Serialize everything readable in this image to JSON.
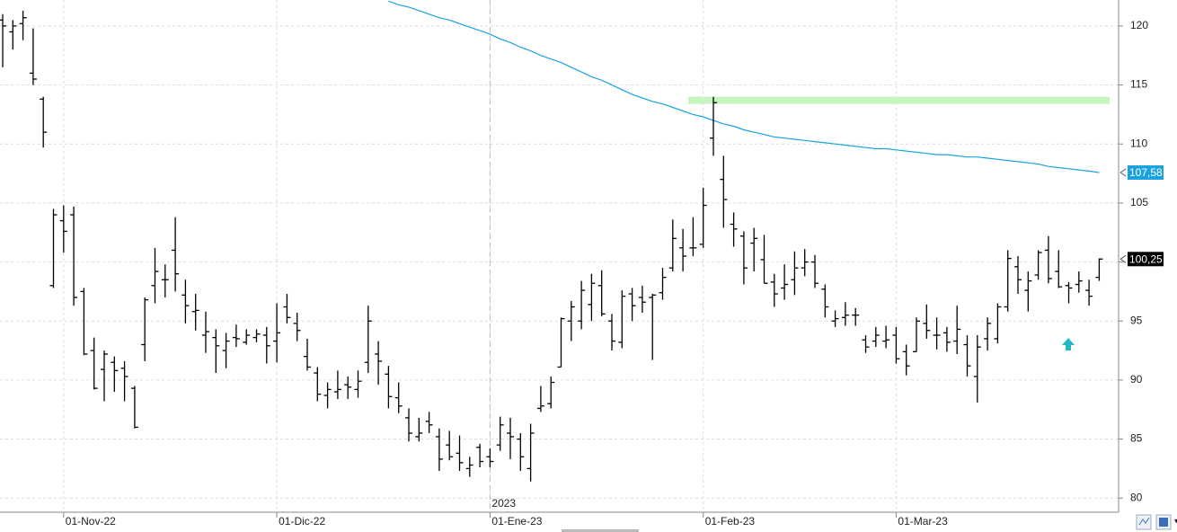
{
  "chart_data": {
    "type": "ohlc",
    "categories": [
      null,
      null,
      null,
      null,
      null,
      null,
      "01-Nov-22",
      null,
      null,
      null,
      null,
      null,
      null,
      null,
      null,
      null,
      null,
      null,
      null,
      null,
      null,
      null,
      null,
      null,
      null,
      null,
      null,
      "01-Dic-22",
      null,
      null,
      null,
      null,
      null,
      null,
      null,
      null,
      null,
      null,
      null,
      null,
      null,
      null,
      null,
      null,
      null,
      null,
      null,
      null,
      "01-Ene-23",
      null,
      null,
      null,
      null,
      null,
      null,
      null,
      null,
      null,
      null,
      null,
      null,
      null,
      null,
      null,
      null,
      null,
      null,
      null,
      null,
      "01-Feb-23",
      null,
      null,
      null,
      null,
      null,
      null,
      null,
      null,
      null,
      null,
      null,
      null,
      null,
      null,
      null,
      null,
      null,
      null,
      "01-Mar-23",
      null,
      null,
      null,
      null,
      null,
      null,
      null,
      null,
      null,
      null,
      null,
      null,
      null,
      null,
      null,
      null,
      null,
      null,
      null,
      null
    ],
    "year_label": "2023",
    "ohlc": {
      "color": "#000000",
      "open": [
        120.5,
        119.5,
        120.2,
        116,
        113.8,
        98,
        103.5,
        104,
        97.5,
        92.5,
        90.9,
        91.5,
        91,
        89.3,
        93,
        98,
        98.5,
        101,
        97.2,
        95.8,
        93.8,
        93.6,
        92.5,
        93.6,
        93.2,
        93.6,
        93.8,
        93.3,
        96.2,
        94.8,
        92,
        90.6,
        88.7,
        89,
        89.6,
        89.2,
        91.5,
        92.2,
        90.5,
        88.5,
        86.8,
        85.2,
        86.5,
        85.2,
        84.5,
        83.8,
        82.5,
        84.3,
        83.5,
        84.5,
        85.5,
        85,
        82.5,
        87.6,
        88,
        91.1,
        95,
        95,
        96.4,
        98,
        95,
        93.2,
        97.3,
        97,
        97,
        97.4,
        99.5,
        101.2,
        101.2,
        101.5,
        110.5,
        107,
        103.2,
        102.2,
        101.6,
        100.2,
        98.3,
        97.8,
        98.5,
        99.5,
        100,
        97.7,
        95,
        95.3,
        95.5,
        93.4,
        93.3,
        93.3,
        93.8,
        92.4,
        92.4,
        94.8,
        93.8,
        94,
        93.3,
        93,
        90.3,
        93.5,
        93.5,
        96.2,
        99.6,
        97.6,
        98.9,
        101,
        99.2,
        98,
        98.1,
        97.6,
        98.7
      ],
      "high": [
        121,
        120.5,
        121.3,
        119.8,
        114,
        104.5,
        104.8,
        104.7,
        97.8,
        93.6,
        92.5,
        92,
        91.6,
        89.5,
        97,
        101.2,
        99.8,
        103.8,
        98.5,
        97.3,
        95.8,
        94.3,
        94,
        94.7,
        94.3,
        94.3,
        94.5,
        96.5,
        97.3,
        95.7,
        93.5,
        91.1,
        89.8,
        90.8,
        90.3,
        90.8,
        96.3,
        93.3,
        91.2,
        89.8,
        87.6,
        86.8,
        87.3,
        85.9,
        85.7,
        85.3,
        83.5,
        84.6,
        84.2,
        86.9,
        86.8,
        85.5,
        86.3,
        89.5,
        90.3,
        95.3,
        96.7,
        98.4,
        99,
        99.3,
        95.6,
        97.6,
        97.8,
        98,
        97.3,
        99.5,
        103.6,
        102.8,
        103.8,
        106.3,
        114,
        109,
        104.2,
        102.6,
        102.9,
        102.3,
        99,
        99.8,
        100.9,
        101.1,
        100.6,
        98.1,
        95.9,
        96.6,
        96.1,
        93.8,
        94.5,
        94.6,
        94.5,
        93,
        95.3,
        96.4,
        95.3,
        94.5,
        96.3,
        93.8,
        93.8,
        95.3,
        96.5,
        101,
        100.5,
        99.2,
        101,
        102.2,
        101,
        98.3,
        99.2,
        98.5,
        100.3
      ],
      "low": [
        116.5,
        118,
        118.8,
        115,
        109.7,
        97.8,
        100.8,
        96.3,
        92.1,
        89.2,
        88.2,
        89,
        88.2,
        85.9,
        91.6,
        96.5,
        97,
        97.5,
        94.8,
        94.2,
        92.3,
        90.6,
        91,
        92.8,
        93,
        93.2,
        91.4,
        91.5,
        94.8,
        93.3,
        90.8,
        88.2,
        87.6,
        88.4,
        88.4,
        88.5,
        90.6,
        89.6,
        87.6,
        87.2,
        84.8,
        84.8,
        85.5,
        82.3,
        83.2,
        82.3,
        81.8,
        82.6,
        82.6,
        84,
        83.3,
        82.3,
        81.4,
        87.3,
        87.6,
        91.1,
        93.3,
        94.3,
        95,
        95.4,
        92.5,
        92.7,
        95,
        95.7,
        91.7,
        96.8,
        99.2,
        99.2,
        100.5,
        101.2,
        109,
        102.9,
        101.3,
        98.1,
        99.2,
        98.2,
        96.2,
        96.8,
        97.2,
        98.8,
        97.8,
        95.3,
        94.5,
        94.6,
        94.6,
        92.3,
        92.8,
        92.7,
        91.4,
        90.4,
        92.4,
        93.5,
        92.6,
        92.4,
        92.2,
        90.3,
        88.1,
        92.5,
        93.1,
        95.8,
        97.3,
        95.8,
        98.5,
        98.2,
        97.8,
        96.5,
        97.4,
        96.3,
        98.4
      ],
      "close": [
        120,
        120,
        120.7,
        115.5,
        111,
        104,
        102.6,
        97,
        92.2,
        89.3,
        92.2,
        90.8,
        90.3,
        86,
        96.8,
        99.2,
        98.5,
        99,
        96.3,
        95.9,
        94.1,
        92.9,
        93.3,
        93.5,
        93.8,
        93.9,
        92.9,
        94,
        95.3,
        94.2,
        91.1,
        88.8,
        89.2,
        89.2,
        89.4,
        89.9,
        95,
        91.6,
        88.6,
        87.8,
        85.5,
        85.5,
        86.2,
        83.3,
        83.5,
        83,
        82.8,
        83.1,
        83.1,
        86.2,
        85.2,
        83.5,
        85.5,
        87.8,
        89.8,
        95.2,
        96.2,
        97.6,
        98.2,
        95.6,
        93.3,
        97.1,
        96.3,
        96.6,
        97.2,
        98.7,
        102,
        100.5,
        101.2,
        104.8,
        113.5,
        105.3,
        102.8,
        99.5,
        102,
        98.2,
        97.3,
        98.1,
        99.5,
        100,
        98.2,
        96.2,
        95.2,
        95.5,
        95.5,
        92.8,
        93.8,
        93.4,
        91.8,
        91.2,
        95,
        94.2,
        93.8,
        93.2,
        94.3,
        91.2,
        92.8,
        94.8,
        96.2,
        100.3,
        98.5,
        98.4,
        100.8,
        98.6,
        97.9,
        97.8,
        98.4,
        97.1,
        100.25
      ]
    },
    "series": [
      {
        "color": "#1aa3e0",
        "values": [
          null,
          null,
          null,
          null,
          null,
          null,
          null,
          null,
          null,
          null,
          null,
          null,
          null,
          null,
          null,
          null,
          null,
          null,
          null,
          null,
          null,
          null,
          null,
          null,
          null,
          null,
          null,
          null,
          null,
          null,
          null,
          null,
          null,
          null,
          null,
          null,
          null,
          null,
          122.1,
          121.8,
          121.6,
          121.3,
          121.0,
          120.7,
          120.5,
          120.2,
          119.9,
          119.6,
          119.3,
          118.9,
          118.6,
          118.2,
          117.9,
          117.5,
          117.2,
          116.9,
          116.5,
          116.1,
          115.7,
          115.4,
          115.0,
          114.6,
          114.2,
          113.9,
          113.6,
          113.4,
          113.1,
          112.8,
          112.5,
          112.3,
          112.0,
          111.7,
          111.5,
          111.2,
          111.0,
          110.8,
          110.6,
          110.5,
          110.4,
          110.3,
          110.2,
          110.1,
          110.0,
          109.9,
          109.8,
          109.7,
          109.6,
          109.6,
          109.5,
          109.4,
          109.3,
          109.2,
          109.1,
          109.1,
          109.0,
          108.9,
          108.9,
          108.8,
          108.7,
          108.6,
          108.5,
          108.4,
          108.3,
          108.1,
          108.0,
          107.9,
          107.8,
          107.7,
          107.58
        ]
      }
    ],
    "levels": [
      {
        "value": 113.7,
        "color": "#c6f5c0"
      }
    ],
    "price_markers": [
      {
        "value": 107.58,
        "label": "107,58",
        "color": "#1aa3e0"
      },
      {
        "value": 100.25,
        "label": "100,25",
        "color": "#000000"
      }
    ],
    "ylim": [
      78.8,
      122.2
    ],
    "yticks": [
      80,
      85,
      90,
      95,
      100,
      105,
      110,
      115,
      120
    ],
    "grid": true
  }
}
